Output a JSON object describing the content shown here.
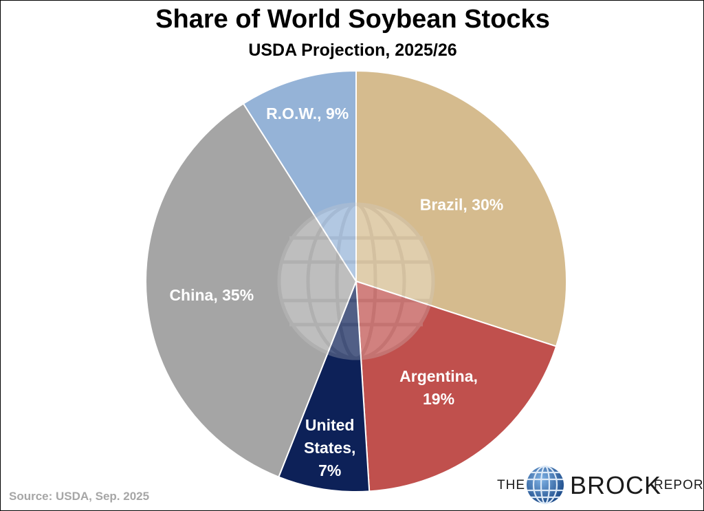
{
  "chart_data": {
    "type": "pie",
    "title": "Share of World Soybean Stocks",
    "subtitle": "USDA Projection, 2025/26",
    "slices": [
      {
        "label": "Brazil, 30%",
        "value": 30,
        "color": "#d5bb8e"
      },
      {
        "label": "Argentina, 19%",
        "value": 19,
        "color": "#c0504d"
      },
      {
        "label": "United States, 7%",
        "value": 7,
        "color": "#0d2158"
      },
      {
        "label": "China, 35%",
        "value": 35,
        "color": "#a5a5a5"
      },
      {
        "label": "R.O.W., 9%",
        "value": 9,
        "color": "#95b3d7"
      }
    ],
    "legend": "none"
  },
  "source": "Source: USDA, Sep. 2025",
  "brand": {
    "the": "THE",
    "brock": "BROCK",
    "report": "REPORT",
    "icon": "globe-icon"
  }
}
